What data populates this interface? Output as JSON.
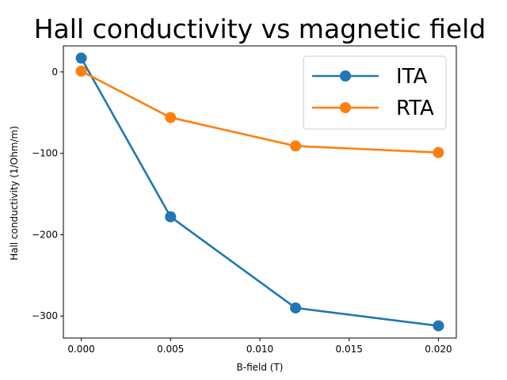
{
  "chart_data": {
    "type": "line",
    "title": "Hall conductivity vs magnetic field",
    "xlabel": "B-field (T)",
    "ylabel": "Hall conductivity (1/Ohm/m)",
    "x": [
      0.0,
      0.005,
      0.012,
      0.02
    ],
    "series": [
      {
        "name": "ITA",
        "values": [
          17,
          -178,
          -290,
          -312
        ],
        "color": "#1f77b4"
      },
      {
        "name": "RTA",
        "values": [
          1,
          -56,
          -91,
          -99
        ],
        "color": "#ff7f0e"
      }
    ],
    "xlim": [
      -0.001,
      0.021
    ],
    "ylim": [
      -327,
      32
    ],
    "xticks": [
      0.0,
      0.005,
      0.01,
      0.015,
      0.02
    ],
    "xtick_labels": [
      "0.000",
      "0.005",
      "0.010",
      "0.015",
      "0.020"
    ],
    "yticks": [
      0,
      -100,
      -200,
      -300
    ],
    "ytick_labels": [
      "0",
      "−100",
      "−200",
      "−300"
    ],
    "legend_position": "top-right",
    "grid": false,
    "marker": "circle"
  }
}
